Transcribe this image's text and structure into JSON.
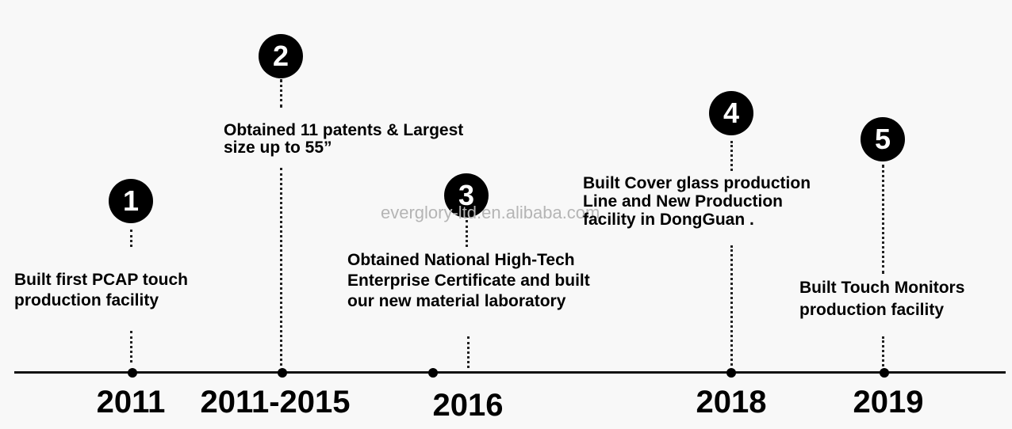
{
  "watermark": "everglory-ltd.en.alibaba.com",
  "milestones": [
    {
      "number": "1",
      "year": "2011",
      "text": "Built first PCAP touch\nproduction facility"
    },
    {
      "number": "2",
      "year": "2011-2015",
      "text": "Obtained 11 patents & Largest\nsize up to 55”"
    },
    {
      "number": "3",
      "year": "2016",
      "text": "Obtained National High-Tech\nEnterprise Certificate and built\nour new material laboratory"
    },
    {
      "number": "4",
      "year": "2018",
      "text": "Built Cover glass production\nLine and New Production\nfacility in DongGuan ."
    },
    {
      "number": "5",
      "year": "2019",
      "text": "Built Touch Monitors\nproduction facility"
    }
  ]
}
